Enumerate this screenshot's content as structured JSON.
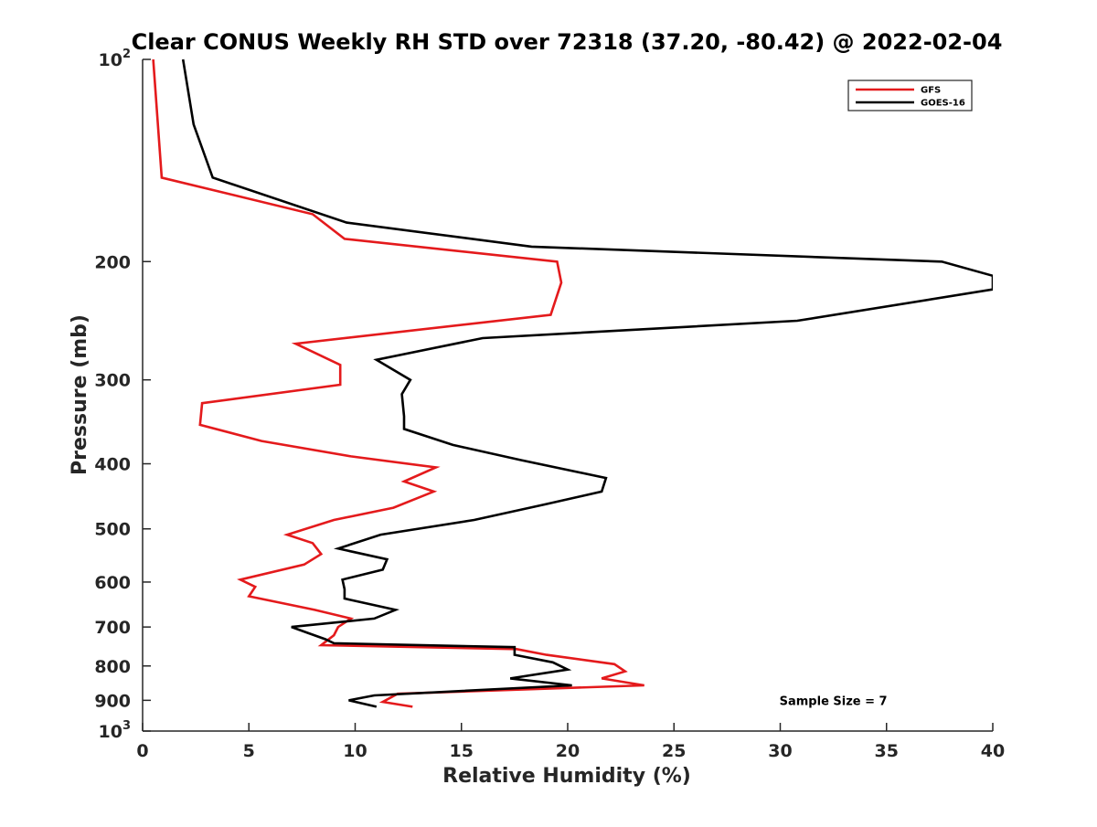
{
  "chart_data": {
    "type": "line",
    "title": "Clear CONUS Weekly RH STD over 72318 (37.20, -80.42) @ 2022-02-04",
    "xlabel": "Relative Humidity (%)",
    "ylabel": "Pressure (mb)",
    "xlim": [
      0,
      40
    ],
    "ylim": [
      100,
      1000
    ],
    "y_scale": "log",
    "y_reversed": true,
    "grid": false,
    "legend_position": "top-right",
    "x_ticks": [
      "0",
      "5",
      "10",
      "15",
      "20",
      "25",
      "30",
      "35",
      "40"
    ],
    "y_ticks": [
      {
        "value": 100,
        "base": "10",
        "exp": "2"
      },
      {
        "value": 200,
        "label": "200"
      },
      {
        "value": 300,
        "label": "300"
      },
      {
        "value": 400,
        "label": "400"
      },
      {
        "value": 500,
        "label": "500"
      },
      {
        "value": 600,
        "label": "600"
      },
      {
        "value": 700,
        "label": "700"
      },
      {
        "value": 800,
        "label": "800"
      },
      {
        "value": 900,
        "label": "900"
      },
      {
        "value": 1000,
        "base": "10",
        "exp": "3"
      }
    ],
    "series": [
      {
        "name": "GFS",
        "color": "#e41a1c",
        "points": [
          [
            0.5,
            100
          ],
          [
            0.9,
            150
          ],
          [
            8.0,
            170
          ],
          [
            9.5,
            185
          ],
          [
            19.5,
            200
          ],
          [
            19.7,
            215
          ],
          [
            19.2,
            240
          ],
          [
            7.2,
            265
          ],
          [
            9.3,
            285
          ],
          [
            9.3,
            305
          ],
          [
            2.8,
            325
          ],
          [
            2.7,
            350
          ],
          [
            5.6,
            370
          ],
          [
            9.8,
            390
          ],
          [
            13.8,
            405
          ],
          [
            12.3,
            425
          ],
          [
            13.7,
            440
          ],
          [
            11.8,
            465
          ],
          [
            9.0,
            485
          ],
          [
            6.8,
            510
          ],
          [
            8.0,
            525
          ],
          [
            8.4,
            545
          ],
          [
            7.6,
            565
          ],
          [
            4.6,
            595
          ],
          [
            5.3,
            610
          ],
          [
            5.0,
            630
          ],
          [
            8.1,
            660
          ],
          [
            9.8,
            680
          ],
          [
            9.2,
            700
          ],
          [
            9.0,
            720
          ],
          [
            8.4,
            745
          ],
          [
            17.6,
            755
          ],
          [
            19.0,
            770
          ],
          [
            22.2,
            795
          ],
          [
            22.7,
            815
          ],
          [
            21.6,
            835
          ],
          [
            23.6,
            855
          ],
          [
            12.0,
            880
          ],
          [
            11.3,
            905
          ],
          [
            12.7,
            920
          ]
        ]
      },
      {
        "name": "GOES-16",
        "color": "#000000",
        "points": [
          [
            1.9,
            100
          ],
          [
            2.4,
            125
          ],
          [
            3.3,
            150
          ],
          [
            9.6,
            175
          ],
          [
            18.3,
            190
          ],
          [
            37.6,
            200
          ],
          [
            40.0,
            210
          ],
          [
            40.0,
            220
          ],
          [
            30.8,
            245
          ],
          [
            16.0,
            260
          ],
          [
            11.0,
            280
          ],
          [
            12.6,
            300
          ],
          [
            12.2,
            315
          ],
          [
            12.3,
            340
          ],
          [
            12.3,
            355
          ],
          [
            14.6,
            375
          ],
          [
            17.8,
            395
          ],
          [
            21.8,
            420
          ],
          [
            21.6,
            440
          ],
          [
            18.9,
            460
          ],
          [
            15.6,
            485
          ],
          [
            11.2,
            510
          ],
          [
            9.2,
            535
          ],
          [
            11.5,
            555
          ],
          [
            11.3,
            575
          ],
          [
            9.4,
            595
          ],
          [
            9.5,
            615
          ],
          [
            9.5,
            635
          ],
          [
            11.9,
            660
          ],
          [
            10.9,
            680
          ],
          [
            7.0,
            700
          ],
          [
            7.8,
            715
          ],
          [
            8.6,
            730
          ],
          [
            9.0,
            740
          ],
          [
            17.5,
            750
          ],
          [
            17.5,
            770
          ],
          [
            19.3,
            790
          ],
          [
            20.0,
            810
          ],
          [
            17.3,
            835
          ],
          [
            20.2,
            855
          ],
          [
            10.9,
            885
          ],
          [
            9.7,
            900
          ],
          [
            11.0,
            920
          ]
        ]
      }
    ],
    "annotations": [
      {
        "text": "Sample Size = 7",
        "x": 32.5,
        "y": 900
      }
    ]
  }
}
